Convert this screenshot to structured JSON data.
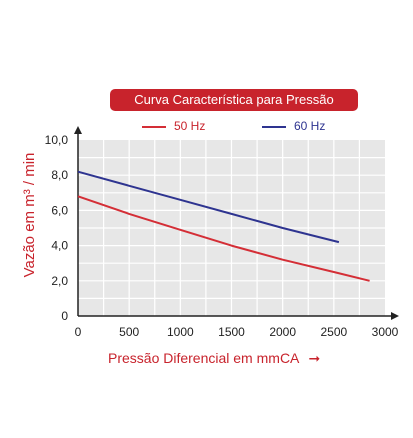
{
  "chart_data": {
    "type": "line",
    "title": "Curva Característica para Pressão",
    "xlabel": "Pressão Diferencial em mmCA",
    "ylabel": "Vazão em m³ / min",
    "xlim": [
      0,
      3000
    ],
    "ylim": [
      0,
      10
    ],
    "x_ticks": [
      "0",
      "500",
      "1000",
      "1500",
      "2000",
      "2500",
      "3000"
    ],
    "y_ticks": [
      "0",
      "2,0",
      "4,0",
      "6,0",
      "8,0",
      "10,0"
    ],
    "grid": true,
    "legend_position": "top",
    "series": [
      {
        "name": "50 Hz",
        "color": "#d42e36",
        "x": [
          0,
          500,
          1000,
          1500,
          2000,
          2500,
          2850
        ],
        "y": [
          6.8,
          5.8,
          4.9,
          4.0,
          3.2,
          2.5,
          2.0
        ]
      },
      {
        "name": "60 Hz",
        "color": "#2e3490",
        "x": [
          0,
          500,
          1000,
          1500,
          2000,
          2550
        ],
        "y": [
          8.2,
          7.4,
          6.6,
          5.8,
          5.0,
          4.2
        ]
      }
    ]
  },
  "arrow_glyph": "➞"
}
